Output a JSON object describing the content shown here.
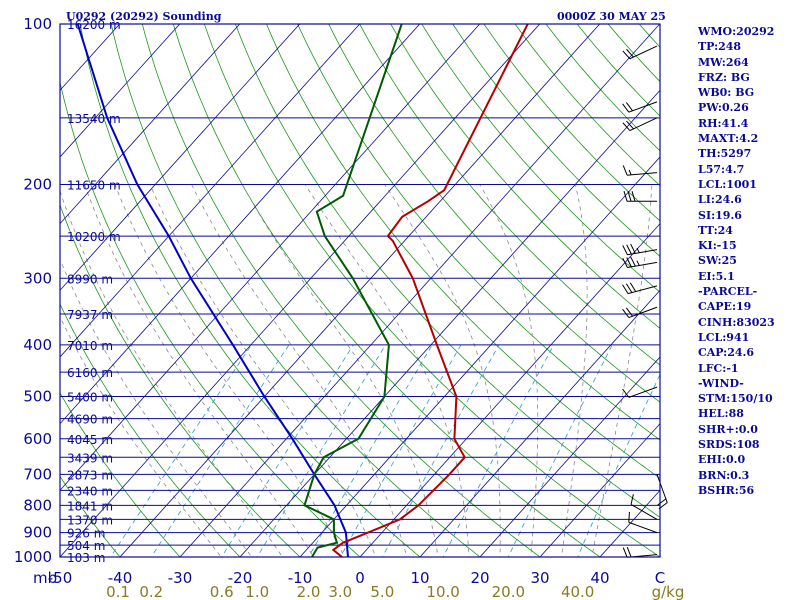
{
  "header": {
    "station": "U0292 (20292) Sounding",
    "time": "0000Z 30 MAY 25"
  },
  "indices": [
    "WMO:20292",
    "TP:248",
    "MW:264",
    "FRZ: BG",
    "WB0: BG",
    "PW:0.26",
    "RH:41.4",
    "MAXT:4.2",
    "TH:5297",
    "L57:4.7",
    "LCL:1001",
    "LI:24.6",
    "SI:19.6",
    "TT:24",
    "KI:-15",
    "SW:25",
    "EI:5.1",
    "-PARCEL-",
    "CAPE:19",
    "CINH:83023",
    "LCL:941",
    "CAP:24.6",
    "LFC:-1",
    "-WIND-",
    "STM:150/10",
    "HEL:88",
    "SHR+:0.0",
    "SRDS:108",
    "EHI:0.0",
    "BRN:0.3",
    "BSHR:56"
  ],
  "colors": {
    "background": "#ffffff",
    "frame": "#0a0a96",
    "isobars": "#0a0a96",
    "isotherms": "#0a0a96",
    "dry_adiabats": "#1a9a1a",
    "moist_adiabats": "#8a8a8a",
    "mixing_ratio": "#2a9ad0",
    "temperature": "#b40000",
    "dewpoint": "#005a00",
    "parcel": "#0000c8",
    "wind_barbs": "#000000",
    "mixing_ratio_labels": "#8a7a20"
  },
  "chart_data": {
    "type": "skew-t",
    "title": "U0292 (20292) Sounding",
    "x_axis": {
      "label": "C",
      "range": [
        -50,
        50
      ],
      "ticks": [
        -50,
        -40,
        -30,
        -20,
        -10,
        0,
        10,
        20,
        30,
        40,
        50
      ],
      "tick_labels": [
        "-50",
        "-40",
        "-30",
        "-20",
        "-10",
        "0",
        "10",
        "20",
        "30",
        "40",
        "C"
      ]
    },
    "y_axis": {
      "label": "mb",
      "scale": "log",
      "range": [
        1000,
        100
      ],
      "ticks": [
        100,
        200,
        300,
        400,
        500,
        600,
        700,
        800,
        900,
        1000
      ],
      "tick_labels": [
        "100",
        "200",
        "300",
        "400",
        "500",
        "600",
        "700",
        "800",
        "900",
        "1000"
      ]
    },
    "height_labels": [
      {
        "p": 100,
        "label": "16200 m"
      },
      {
        "p": 150,
        "label": "13540 m"
      },
      {
        "p": 200,
        "label": "11650 m"
      },
      {
        "p": 250,
        "label": "10200 m"
      },
      {
        "p": 300,
        "label": "8990 m"
      },
      {
        "p": 350,
        "label": "7937 m"
      },
      {
        "p": 400,
        "label": "7010 m"
      },
      {
        "p": 450,
        "label": "6160 m"
      },
      {
        "p": 500,
        "label": "5400 m"
      },
      {
        "p": 550,
        "label": "4690 m"
      },
      {
        "p": 600,
        "label": "4045 m"
      },
      {
        "p": 650,
        "label": "3439 m"
      },
      {
        "p": 700,
        "label": "2873 m"
      },
      {
        "p": 750,
        "label": "2340 m"
      },
      {
        "p": 800,
        "label": "1841 m"
      },
      {
        "p": 850,
        "label": "1370 m"
      },
      {
        "p": 900,
        "label": "926 m"
      },
      {
        "p": 950,
        "label": "504 m"
      },
      {
        "p": 1000,
        "label": "103 m"
      }
    ],
    "mixing_ratio_axis": {
      "label": "g/kg",
      "values": [
        0.1,
        0.2,
        0.6,
        1.0,
        2.0,
        3.0,
        5.0,
        10.0,
        20.0,
        40.0
      ],
      "labels": [
        "0.1",
        "0.2",
        "0.6",
        "1.0",
        "2.0",
        "3.0",
        "5.0",
        "10.0",
        "20.0",
        "40.0"
      ]
    },
    "temperature": [
      {
        "p": 1000,
        "t": -3.0
      },
      {
        "p": 970,
        "t": -5.5
      },
      {
        "p": 940,
        "t": -5.0
      },
      {
        "p": 910,
        "t": -3.0
      },
      {
        "p": 850,
        "t": 1.0
      },
      {
        "p": 800,
        "t": 2.0
      },
      {
        "p": 700,
        "t": 2.5
      },
      {
        "p": 650,
        "t": 2.5
      },
      {
        "p": 600,
        "t": -2.0
      },
      {
        "p": 500,
        "t": -8.0
      },
      {
        "p": 400,
        "t": -19.0
      },
      {
        "p": 300,
        "t": -33.0
      },
      {
        "p": 255,
        "t": -42.0
      },
      {
        "p": 250,
        "t": -43.5
      },
      {
        "p": 230,
        "t": -44.0
      },
      {
        "p": 215,
        "t": -42.0
      },
      {
        "p": 205,
        "t": -41.0
      },
      {
        "p": 100,
        "t": -52.0
      }
    ],
    "dewpoint": [
      {
        "p": 1000,
        "t": -8.0
      },
      {
        "p": 960,
        "t": -8.5
      },
      {
        "p": 940,
        "t": -6.0
      },
      {
        "p": 900,
        "t": -8.0
      },
      {
        "p": 850,
        "t": -10.0
      },
      {
        "p": 800,
        "t": -17.0
      },
      {
        "p": 700,
        "t": -20.0
      },
      {
        "p": 650,
        "t": -21.0
      },
      {
        "p": 600,
        "t": -18.0
      },
      {
        "p": 500,
        "t": -20.0
      },
      {
        "p": 400,
        "t": -27.0
      },
      {
        "p": 300,
        "t": -43.0
      },
      {
        "p": 250,
        "t": -54.0
      },
      {
        "p": 225,
        "t": -59.0
      },
      {
        "p": 210,
        "t": -57.0
      },
      {
        "p": 100,
        "t": -73.0
      }
    ],
    "parcel": [
      {
        "p": 1000,
        "t": -2.0
      },
      {
        "p": 900,
        "t": -6.0
      },
      {
        "p": 800,
        "t": -12.0
      },
      {
        "p": 700,
        "t": -20.0
      },
      {
        "p": 600,
        "t": -29.0
      },
      {
        "p": 500,
        "t": -40.0
      },
      {
        "p": 400,
        "t": -53.0
      },
      {
        "p": 300,
        "t": -70.0
      },
      {
        "p": 250,
        "t": -80.0
      },
      {
        "p": 200,
        "t": -93.0
      },
      {
        "p": 150,
        "t": -108.0
      },
      {
        "p": 100,
        "t": -127.0
      }
    ],
    "wind_barbs": [
      {
        "p": 990,
        "dir": 265,
        "speed": 20
      },
      {
        "p": 900,
        "dir": 290,
        "speed": 10
      },
      {
        "p": 850,
        "dir": 300,
        "speed": 10
      },
      {
        "p": 700,
        "dir": 160,
        "speed": 20
      },
      {
        "p": 480,
        "dir": 250,
        "speed": 10
      },
      {
        "p": 340,
        "dir": 250,
        "speed": 20
      },
      {
        "p": 310,
        "dir": 255,
        "speed": 30
      },
      {
        "p": 280,
        "dir": 260,
        "speed": 35
      },
      {
        "p": 265,
        "dir": 260,
        "speed": 35
      },
      {
        "p": 215,
        "dir": 270,
        "speed": 30
      },
      {
        "p": 190,
        "dir": 265,
        "speed": 15
      },
      {
        "p": 150,
        "dir": 245,
        "speed": 20
      },
      {
        "p": 140,
        "dir": 250,
        "speed": 20
      },
      {
        "p": 110,
        "dir": 245,
        "speed": 20
      }
    ],
    "grid": true
  }
}
